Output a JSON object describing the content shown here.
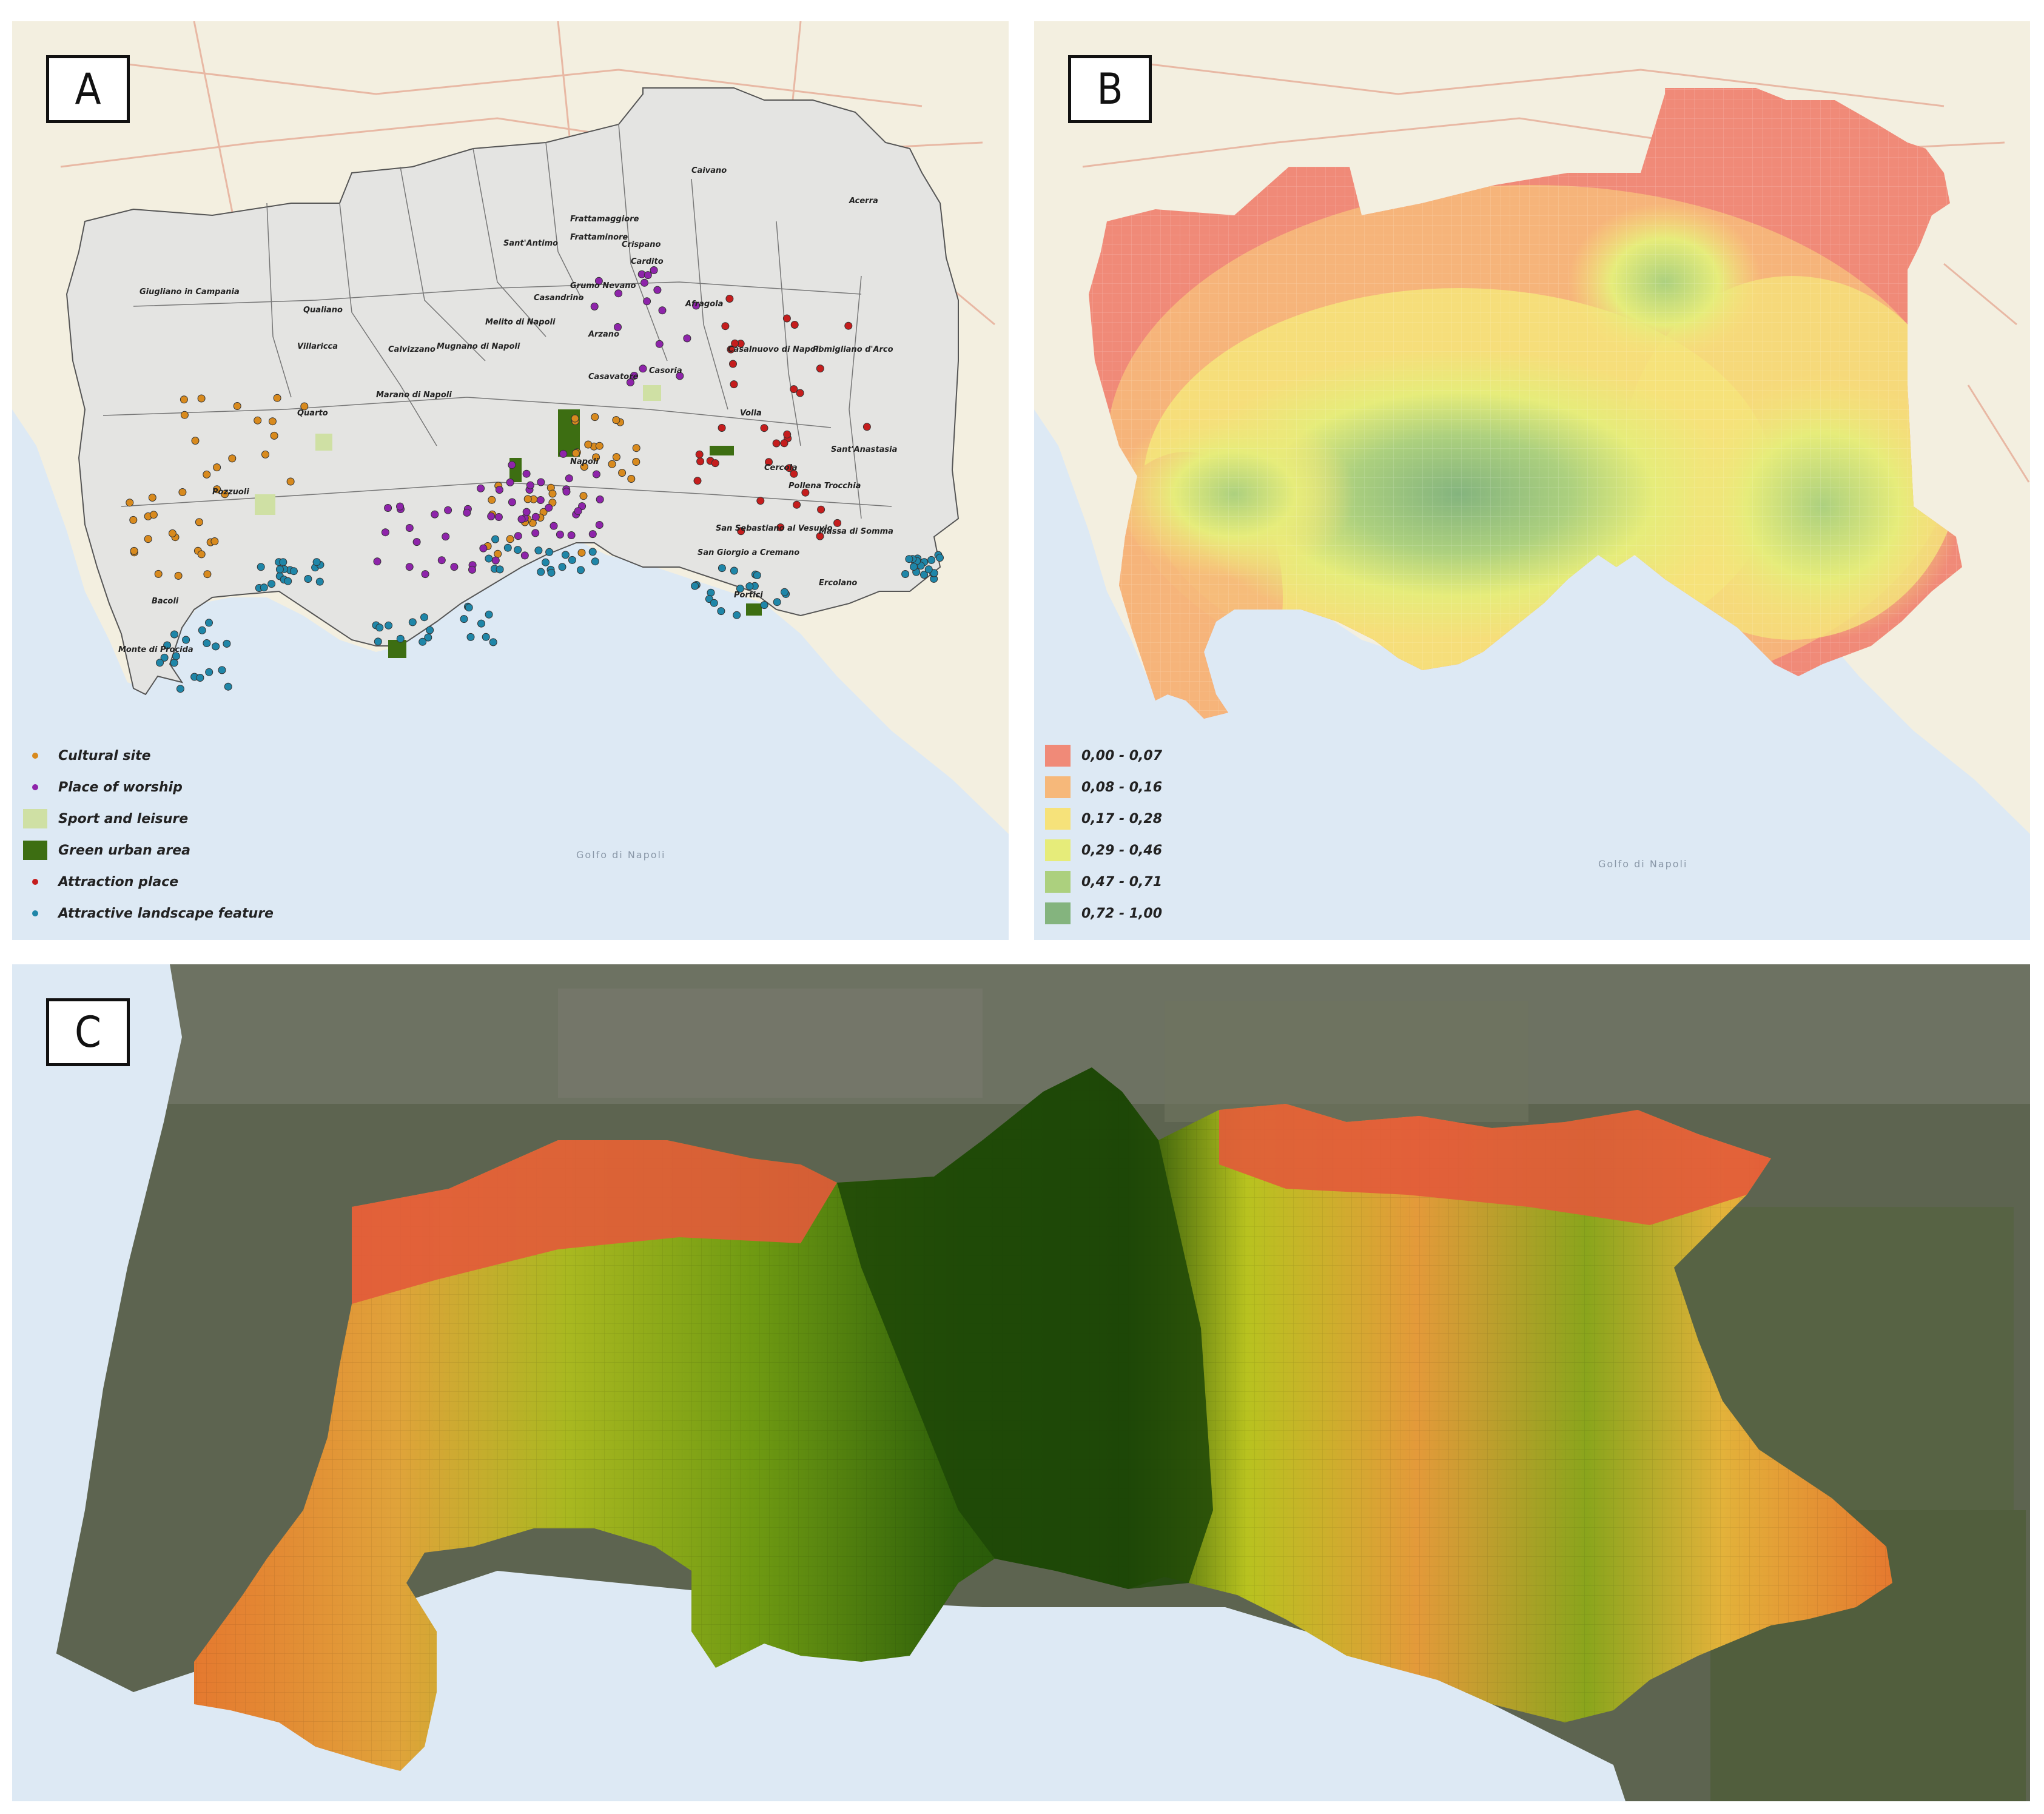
{
  "panels": {
    "a": {
      "label": "A",
      "legend": [
        {
          "text": "Cultural site",
          "color": "#d88a1e",
          "kind": "dot"
        },
        {
          "text": "Place of worship",
          "color": "#8e24aa",
          "kind": "dot"
        },
        {
          "text": "Sport and leisure",
          "color": "#cfe0a4",
          "kind": "square"
        },
        {
          "text": "Green urban area",
          "color": "#3d6e12",
          "kind": "square"
        },
        {
          "text": "Attraction place",
          "color": "#c51d1d",
          "kind": "dot"
        },
        {
          "text": "Attractive landscape feature",
          "color": "#1f86a8",
          "kind": "dot"
        }
      ],
      "places": [
        "Giugliano in Campania",
        "Qualiano",
        "Villaricca",
        "Melito di Napoli",
        "Mugnano di Napoli",
        "Calvizzano",
        "Marano di Napoli",
        "Quarto",
        "Pozzuoli",
        "Bacoli",
        "Monte di Procida",
        "Sant'Antimo",
        "Frattamaggiore",
        "Caivano",
        "Cardito",
        "Afragola",
        "Casoria",
        "Casalnuovo di Napoli",
        "Acerra",
        "Arzano",
        "Casavatore",
        "Volla",
        "Cercola",
        "Pollena Trocchia",
        "Sant'Anastasia",
        "Pomigliano d'Arco",
        "San Sebastiano al Vesuvio",
        "Massa di Somma",
        "San Giorgio a Cremano",
        "Portici",
        "Ercolano",
        "Napoli",
        "Frattaminore",
        "Crispano",
        "Grumo Nevano",
        "Casandrino"
      ],
      "sea_label": "Golfo di Napoli"
    },
    "b": {
      "label": "B",
      "legend": [
        {
          "text": "0,00 - 0,07",
          "color": "#f08a78"
        },
        {
          "text": "0,08 - 0,16",
          "color": "#f6b87a"
        },
        {
          "text": "0,17 - 0,28",
          "color": "#f6e27a"
        },
        {
          "text": "0,29 - 0,46",
          "color": "#e6ec7a"
        },
        {
          "text": "0,47 - 0,71",
          "color": "#acd07e"
        },
        {
          "text": "0,72 - 1,00",
          "color": "#84b47e"
        }
      ],
      "sea_label": "Golfo di Napoli"
    },
    "c": {
      "label": "C"
    }
  },
  "colors": {
    "sea": "#dde9f4",
    "land": "#f3efe0",
    "area_fill": "#e4e4e2",
    "satellite": "#5d6450"
  }
}
